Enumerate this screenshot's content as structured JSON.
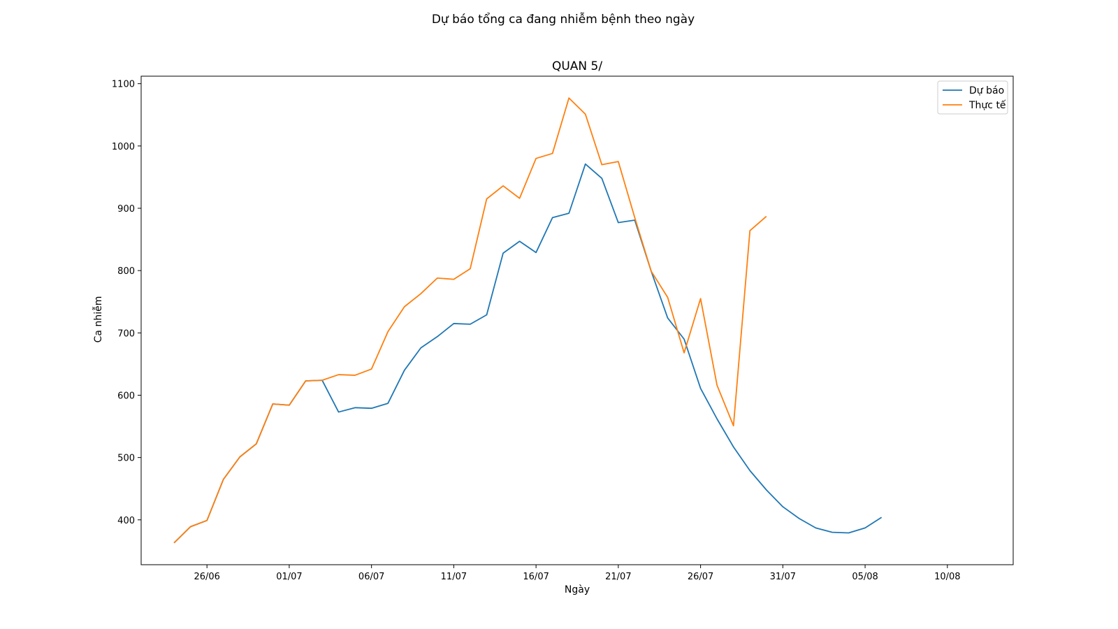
{
  "suptitle": "Dự báo tổng ca đang nhiễm bệnh theo ngày",
  "chart_data": {
    "type": "line",
    "title": "QUAN 5/",
    "xlabel": "Ngày",
    "ylabel": "Ca nhiễm",
    "x_start": "2021-06-24",
    "xlim": [
      "2021-06-22",
      "2021-08-14"
    ],
    "ylim": [
      328,
      1112
    ],
    "x_ticks": [
      {
        "date": "2021-06-26",
        "label": "26/06"
      },
      {
        "date": "2021-07-01",
        "label": "01/07"
      },
      {
        "date": "2021-07-06",
        "label": "06/07"
      },
      {
        "date": "2021-07-11",
        "label": "11/07"
      },
      {
        "date": "2021-07-16",
        "label": "16/07"
      },
      {
        "date": "2021-07-21",
        "label": "21/07"
      },
      {
        "date": "2021-07-26",
        "label": "26/07"
      },
      {
        "date": "2021-07-31",
        "label": "31/07"
      },
      {
        "date": "2021-08-05",
        "label": "05/08"
      },
      {
        "date": "2021-08-10",
        "label": "10/08"
      }
    ],
    "y_ticks": [
      {
        "value": 400,
        "label": "400"
      },
      {
        "value": 500,
        "label": "500"
      },
      {
        "value": 600,
        "label": "600"
      },
      {
        "value": 700,
        "label": "700"
      },
      {
        "value": 800,
        "label": "800"
      },
      {
        "value": 900,
        "label": "900"
      },
      {
        "value": 1000,
        "label": "1000"
      },
      {
        "value": 1100,
        "label": "1100"
      }
    ],
    "legend_position": "top-right",
    "grid": false,
    "series": [
      {
        "name": "Dự báo",
        "color": "#1f77b4",
        "values": [
          363,
          389,
          399,
          465,
          501,
          522,
          586,
          584,
          623,
          624,
          573,
          580,
          579,
          587,
          640,
          676,
          694,
          715,
          714,
          729,
          828,
          847,
          829,
          885,
          892,
          971,
          948,
          877,
          881,
          799,
          724,
          690,
          611,
          562,
          517,
          479,
          448,
          421,
          402,
          387,
          380,
          379,
          387,
          404
        ]
      },
      {
        "name": "Thực tế",
        "color": "#ff7f0e",
        "values": [
          363,
          389,
          399,
          465,
          501,
          522,
          586,
          584,
          623,
          624,
          633,
          632,
          642,
          702,
          742,
          763,
          788,
          786,
          803,
          915,
          936,
          916,
          980,
          988,
          1077,
          1051,
          970,
          975,
          885,
          799,
          757,
          668,
          755,
          616,
          551,
          864,
          887
        ]
      }
    ]
  }
}
